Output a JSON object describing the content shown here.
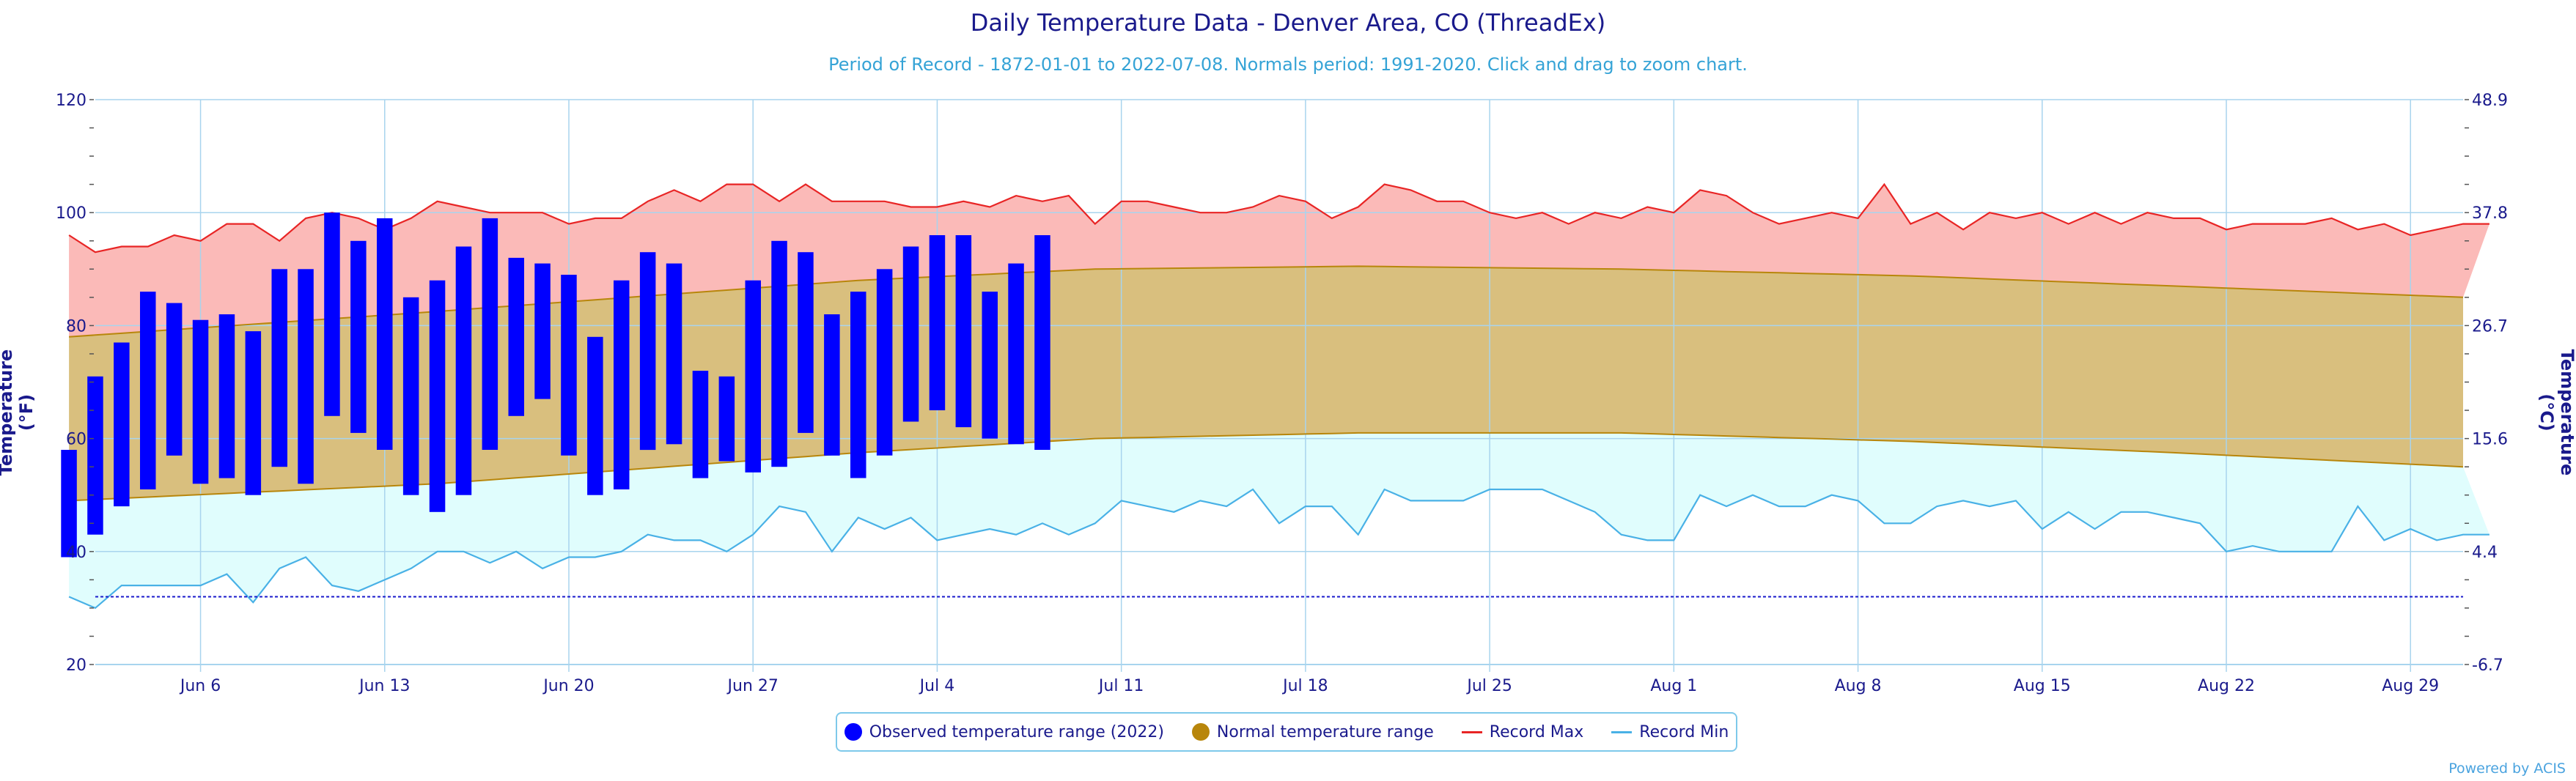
{
  "header": {
    "title": "Daily Temperature Data - Denver Area, CO (ThreadEx)",
    "subtitle": "Period of Record - 1872-01-01 to 2022-07-08. Normals period: 1991-2020. Click and drag to zoom chart."
  },
  "credits": "Powered by ACIS",
  "colors": {
    "observed": "#0000ff",
    "normal_fill": "#d9bf7e",
    "normal_line": "#b8860b",
    "record_max_fill": "#fbbab8",
    "record_max_line": "#e82525",
    "record_min_fill": "#e0fdfd",
    "record_min_line": "#49b1e6",
    "freeze_line": "#1a1acc",
    "axis_text": "#1a1a8c",
    "grid": "#a8d4ee"
  },
  "legend": {
    "observed": "Observed temperature range (2022)",
    "normal": "Normal temperature range",
    "record_max": "Record Max",
    "record_min": "Record Min"
  },
  "chart_data": {
    "type": "area",
    "x_start_date": "2022-06-02",
    "x_end_date": "2022-08-31",
    "grid": true,
    "legend_position": "bottom-center",
    "y_axis_left": {
      "label": "Temperature (°F)",
      "ylim": [
        20,
        120
      ],
      "ticks": [
        20,
        40,
        60,
        80,
        100,
        120
      ]
    },
    "y_axis_right": {
      "label": "Temperature (°C)",
      "ticks": [
        "-6.7",
        "4.4",
        "15.6",
        "26.7",
        "37.8",
        "48.9"
      ]
    },
    "x_tick_labels": [
      "Jun 6",
      "Jun 13",
      "Jun 20",
      "Jun 27",
      "Jul 4",
      "Jul 11",
      "Jul 18",
      "Jul 25",
      "Aug 1",
      "Aug 8",
      "Aug 15",
      "Aug 22",
      "Aug 29"
    ],
    "freezing_line_f": 32,
    "observed_range_2022": {
      "start_date": "2022-06-01",
      "high": [
        58,
        71,
        77,
        86,
        84,
        81,
        82,
        79,
        90,
        90,
        100,
        95,
        99,
        85,
        88,
        94,
        99,
        92,
        91,
        89,
        78,
        88,
        93,
        91,
        72,
        71,
        88,
        95,
        93,
        82,
        86,
        90,
        94,
        96,
        96,
        86,
        91,
        96
      ],
      "low": [
        39,
        43,
        48,
        51,
        57,
        52,
        53,
        50,
        55,
        52,
        64,
        61,
        58,
        50,
        47,
        50,
        58,
        64,
        67,
        57,
        50,
        51,
        58,
        59,
        53,
        56,
        54,
        55,
        61,
        57,
        53,
        57,
        63,
        65,
        62,
        60,
        59,
        58
      ]
    },
    "record_max": {
      "start_date": "2022-06-01",
      "values": [
        96,
        93,
        94,
        94,
        96,
        95,
        98,
        98,
        95,
        99,
        100,
        99,
        97,
        99,
        102,
        101,
        100,
        100,
        100,
        98,
        99,
        99,
        102,
        104,
        102,
        105,
        105,
        102,
        105,
        102,
        102,
        102,
        101,
        101,
        102,
        101,
        103,
        102,
        103,
        98,
        102,
        102,
        101,
        100,
        100,
        101,
        103,
        102,
        99,
        101,
        105,
        104,
        102,
        102,
        100,
        99,
        100,
        98,
        100,
        99,
        101,
        100,
        104,
        103,
        100,
        98,
        99,
        100,
        99,
        105,
        98,
        100,
        97,
        100,
        99,
        100,
        98,
        100,
        98,
        100,
        99,
        99,
        97,
        98,
        98,
        98,
        99,
        97,
        98,
        96,
        97,
        98,
        98
      ]
    },
    "record_min": {
      "start_date": "2022-06-01",
      "values": [
        32,
        30,
        34,
        34,
        34,
        34,
        36,
        31,
        37,
        39,
        34,
        33,
        35,
        37,
        40,
        40,
        38,
        40,
        37,
        39,
        39,
        40,
        43,
        42,
        42,
        40,
        43,
        48,
        47,
        40,
        46,
        44,
        46,
        42,
        43,
        44,
        43,
        45,
        43,
        45,
        49,
        48,
        47,
        49,
        48,
        51,
        45,
        48,
        48,
        43,
        51,
        49,
        49,
        49,
        51,
        51,
        51,
        49,
        47,
        43,
        42,
        42,
        50,
        48,
        50,
        48,
        48,
        50,
        49,
        45,
        45,
        48,
        49,
        48,
        49,
        44,
        47,
        44,
        47,
        47,
        46,
        45,
        40,
        41,
        40,
        40,
        40,
        48,
        42,
        44,
        42,
        43,
        43
      ]
    },
    "normal_high": {
      "dates": [
        "2022-06-01",
        "2022-06-15",
        "2022-07-01",
        "2022-07-10",
        "2022-07-20",
        "2022-07-30",
        "2022-08-10",
        "2022-08-20",
        "2022-08-31"
      ],
      "values": [
        78,
        82.5,
        88,
        90,
        90.5,
        90,
        88.8,
        87,
        85
      ]
    },
    "normal_low": {
      "dates": [
        "2022-06-01",
        "2022-06-15",
        "2022-07-01",
        "2022-07-10",
        "2022-07-20",
        "2022-07-30",
        "2022-08-10",
        "2022-08-20",
        "2022-08-31"
      ],
      "values": [
        49,
        52,
        57.5,
        60,
        61,
        61,
        59.5,
        57.5,
        55
      ]
    }
  }
}
